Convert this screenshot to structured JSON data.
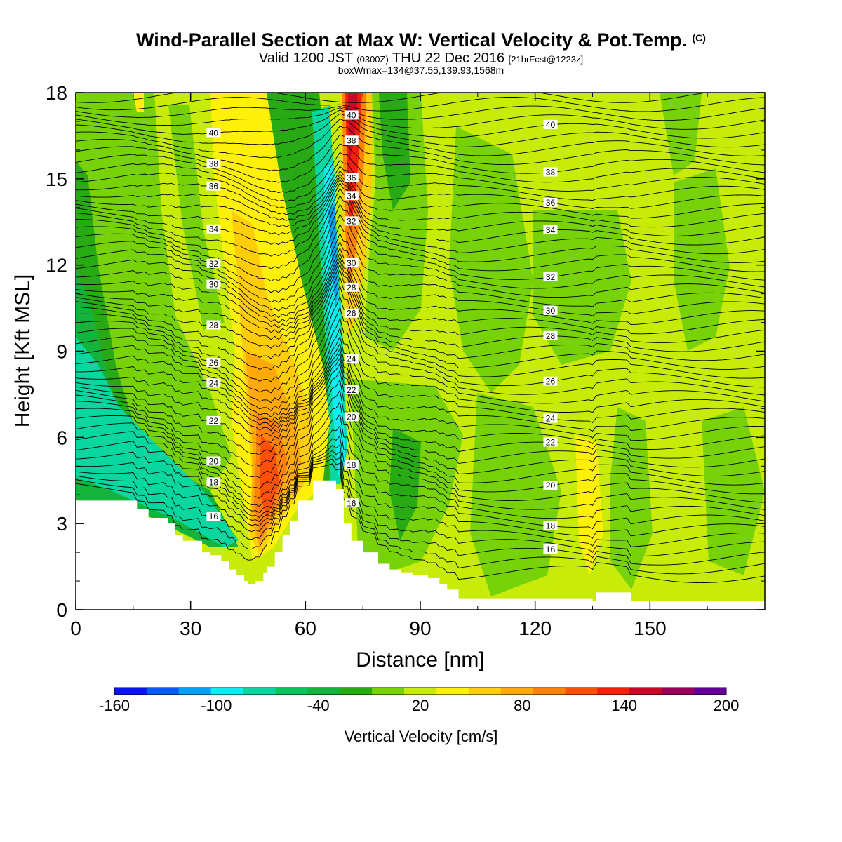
{
  "header": {
    "title": "Wind-Parallel Section at Max W: Vertical Velocity & Pot.Temp.",
    "copyright": "(C)",
    "valid_prefix": "Valid 1200 JST",
    "valid_utc": "(0300Z)",
    "valid_date": "THU 22 Dec 2016",
    "forecast": "[21hrFcst@1223z]",
    "box_info": "boxWmax=134@37.55,139.93,1568m"
  },
  "chart_data": {
    "type": "heatmap",
    "title": "Wind-Parallel Section at Max W: Vertical Velocity & Pot.Temp.",
    "xlabel": "Distance [nm]",
    "ylabel": "Height [Kft MSL]",
    "xlim": [
      0,
      180
    ],
    "ylim": [
      0,
      18
    ],
    "x_ticks": [
      0,
      30,
      60,
      90,
      120,
      150
    ],
    "y_ticks": [
      0,
      3,
      6,
      9,
      12,
      15,
      18
    ],
    "x_tick_labels": [
      "0",
      "30",
      "60",
      "90",
      "120",
      "150"
    ],
    "y_tick_labels": [
      "0",
      "3",
      "6",
      "9",
      "12",
      "15",
      "18"
    ],
    "colorbar": {
      "title": "Vertical Velocity [cm/s]",
      "tick_labels": [
        "-160",
        "-100",
        "-40",
        "20",
        "80",
        "140",
        "200"
      ],
      "tick_values": [
        -160,
        -100,
        -40,
        20,
        80,
        140,
        200
      ],
      "bins": [
        -160,
        -140,
        -120,
        -100,
        -80,
        -60,
        -40,
        -20,
        0,
        20,
        40,
        60,
        80,
        100,
        120,
        140,
        160,
        180,
        200
      ],
      "colors": [
        "#0a14f0",
        "#0a5af5",
        "#05a0f5",
        "#0aeef0",
        "#0ad7a0",
        "#0ac35a",
        "#14b43c",
        "#28aa14",
        "#78d20a",
        "#c8eb0a",
        "#fff00a",
        "#ffcd0a",
        "#ffaa0a",
        "#ff820a",
        "#ff500a",
        "#f51e0a",
        "#c80a28",
        "#96005a",
        "#640096"
      ]
    },
    "theta_contour_labels": [
      16,
      18,
      20,
      22,
      24,
      26,
      28,
      30,
      32,
      34,
      36,
      38,
      40
    ],
    "terrain_profile": {
      "x": [
        0,
        13,
        16,
        19,
        24,
        26,
        28,
        33,
        35,
        38,
        40,
        42,
        44,
        45,
        47,
        49,
        50,
        52,
        54,
        56,
        58,
        62,
        66,
        68,
        70,
        72,
        75,
        79,
        82,
        85,
        88,
        92,
        95,
        97,
        100,
        135,
        136,
        145,
        180
      ],
      "y": [
        3.8,
        3.8,
        3.5,
        3.2,
        3.0,
        2.6,
        2.4,
        2.0,
        1.9,
        1.7,
        1.4,
        1.2,
        1.0,
        0.9,
        1.0,
        1.3,
        1.5,
        2.0,
        2.6,
        3.1,
        3.8,
        4.5,
        4.5,
        4.2,
        3.0,
        2.4,
        2.0,
        1.6,
        1.4,
        1.3,
        1.2,
        1.1,
        0.9,
        0.7,
        0.4,
        0.3,
        0.6,
        0.3,
        0.3
      ]
    },
    "max_updraft_cm_s": 134,
    "max_updraft_location": "37.55,139.93",
    "max_updraft_height_m": 1568
  }
}
